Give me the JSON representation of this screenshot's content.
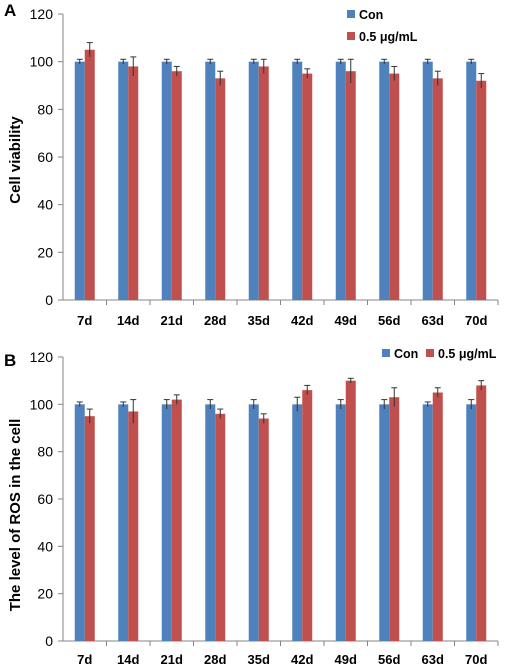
{
  "chart_data": [
    {
      "panel": "A",
      "type": "bar",
      "ylabel": "Cell viability",
      "ylim": [
        0,
        120
      ],
      "yticks": [
        "0",
        "20",
        "40",
        "60",
        "80",
        "100",
        "120"
      ],
      "categories": [
        "7d",
        "14d",
        "21d",
        "28d",
        "35d",
        "42d",
        "49d",
        "56d",
        "63d",
        "70d"
      ],
      "legend_position": "top-right",
      "grid": false,
      "series": [
        {
          "name": "Con",
          "color": "#4f81bd",
          "values": [
            100,
            100,
            100,
            100,
            100,
            100,
            100,
            100,
            100,
            100
          ],
          "errors": [
            1,
            1,
            1,
            1,
            1,
            1,
            1,
            1,
            1,
            1
          ]
        },
        {
          "name": "0.5 μg/mL",
          "color": "#c0504d",
          "values": [
            105,
            98,
            96,
            93,
            98,
            95,
            96,
            95,
            93,
            92
          ],
          "errors": [
            3,
            4,
            2,
            3,
            3,
            2,
            5,
            3,
            3,
            3
          ]
        }
      ]
    },
    {
      "panel": "B",
      "type": "bar",
      "ylabel": "The level of ROS in the cell",
      "ylim": [
        0,
        120
      ],
      "yticks": [
        "0",
        "20",
        "40",
        "60",
        "80",
        "100",
        "120"
      ],
      "categories": [
        "7d",
        "14d",
        "21d",
        "28d",
        "35d",
        "42d",
        "49d",
        "56d",
        "63d",
        "70d"
      ],
      "legend_position": "top-right",
      "grid": false,
      "series": [
        {
          "name": "Con",
          "color": "#4f81bd",
          "values": [
            100,
            100,
            100,
            100,
            100,
            100,
            100,
            100,
            100,
            100
          ],
          "errors": [
            1,
            1,
            2,
            2,
            2,
            3,
            2,
            2,
            1,
            2
          ]
        },
        {
          "name": "0.5 μg/mL",
          "color": "#c0504d",
          "values": [
            95,
            97,
            102,
            96,
            94,
            106,
            110,
            103,
            105,
            108
          ],
          "errors": [
            3,
            5,
            2,
            2,
            2,
            2,
            1,
            4,
            2,
            2
          ]
        }
      ]
    }
  ]
}
